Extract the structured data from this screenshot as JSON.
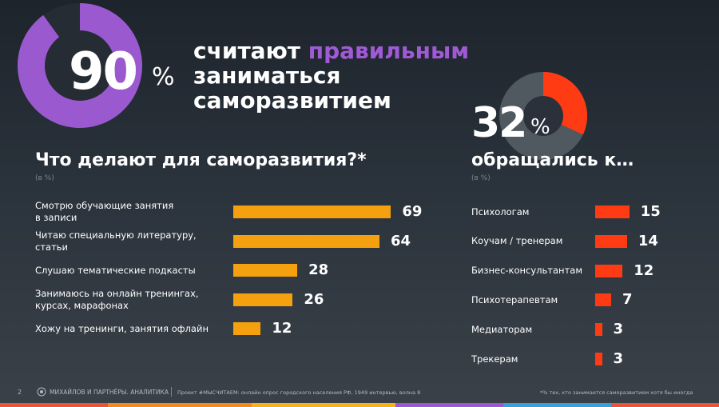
{
  "hero": {
    "number": "90",
    "percent_sign": "%",
    "headline_line1_a": "считают ",
    "headline_line1_accent": "правильным",
    "headline_line2": "заниматься",
    "headline_line3": "саморазвитием",
    "share": 0.9
  },
  "secondary": {
    "number": "32",
    "percent_sign": "%",
    "share": 0.32
  },
  "colors": {
    "purple": "#9b59d0",
    "accent_text": "#a05ad6",
    "donut_bg": "#262c34",
    "orange": "#f5a00f",
    "red_orange": "#ff3b14"
  },
  "chart_data": [
    {
      "type": "bar",
      "title": "Что делают для саморазвития?*",
      "unit": "(в %)",
      "categories": [
        [
          "Смотрю обучающие занятия",
          "в записи"
        ],
        [
          "Читаю специальную литературу,",
          "статьи"
        ],
        [
          "Слушаю тематические подкасты"
        ],
        [
          "Занимаюсь на онлайн тренингах,",
          "курсах, марафонах"
        ],
        [
          "Хожу на тренинги, занятия офлайн"
        ]
      ],
      "values": [
        69,
        64,
        28,
        26,
        12
      ],
      "orientation": "horizontal",
      "color": "#f5a00f"
    },
    {
      "type": "bar",
      "title": "обращались к…",
      "unit": "(в %)",
      "categories": [
        "Психологам",
        "Коучам / тренерам",
        "Бизнес-консультантам",
        "Психотерапевтам",
        "Медиаторам",
        "Трекерам"
      ],
      "values": [
        15,
        14,
        12,
        7,
        3,
        3
      ],
      "orientation": "horizontal",
      "color": "#ff3b14"
    }
  ],
  "footer": {
    "page_number": "2",
    "logo_icon": "company-logo-icon",
    "company": "МИХАЙЛОВ И ПАРТНЁРЫ. АНАЛИТИКА",
    "source": "Проект #МЫСЧИТАЕМ: онлайн опрос городского населения РФ, 1949 интервью, волна 8",
    "footnote": "*% тех, кто занимается саморазвитием хотя бы иногда",
    "stripe_colors": [
      "#e8563a",
      "#f28a1f",
      "#f5b21a",
      "#9b59d0",
      "#3aa0d8",
      "#e8563a"
    ]
  }
}
